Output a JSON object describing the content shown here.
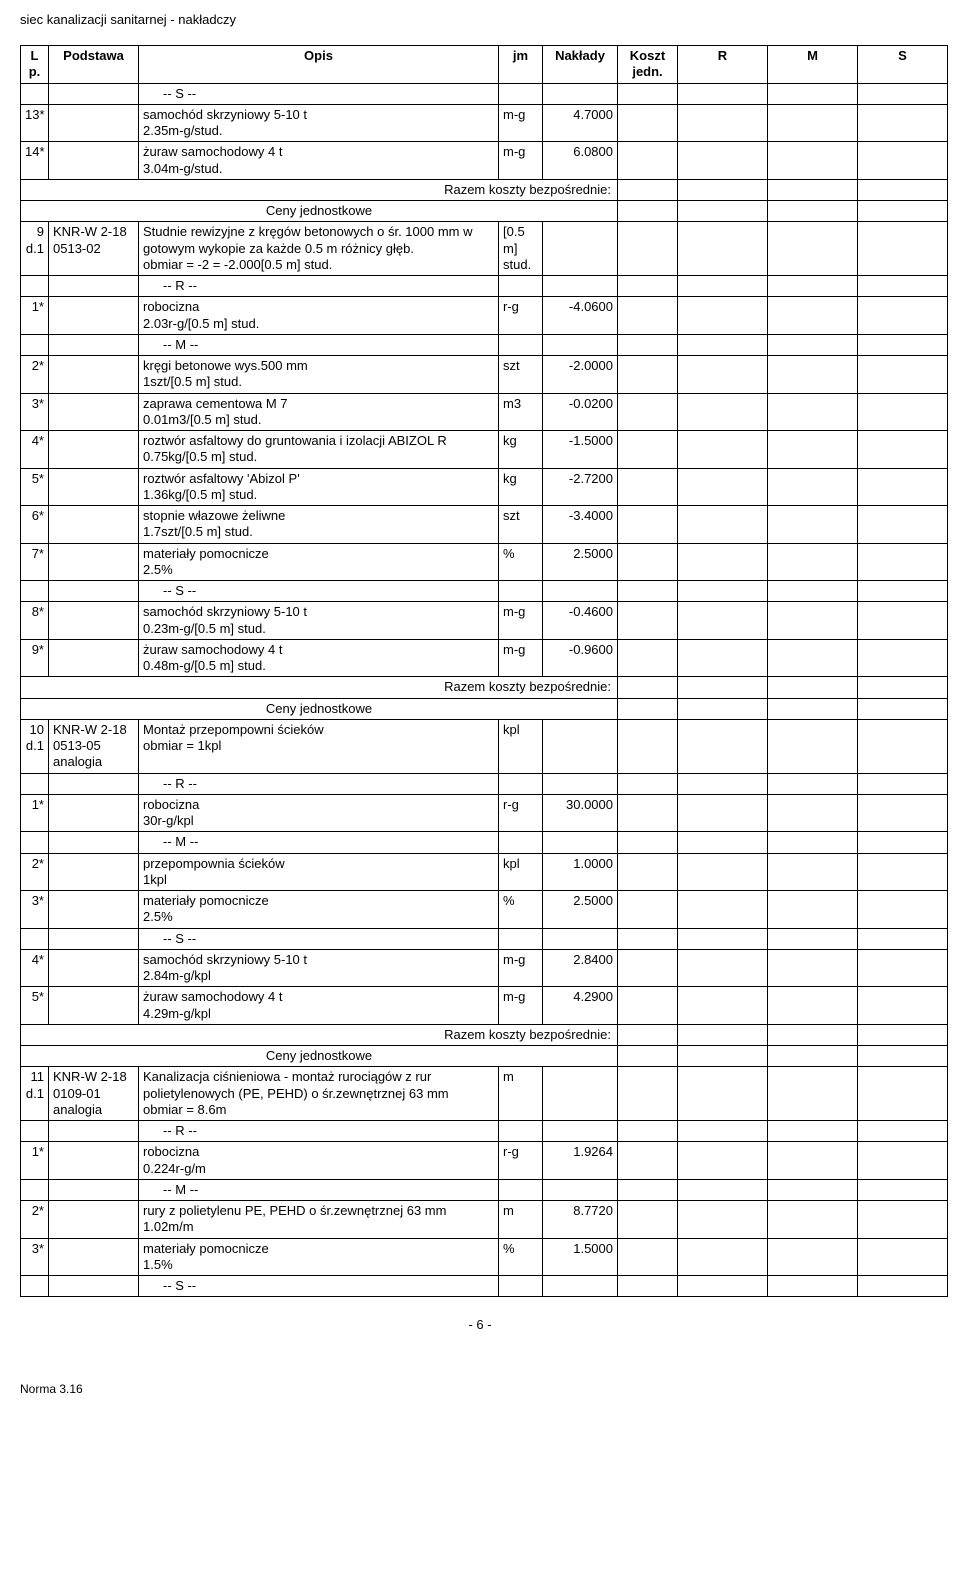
{
  "doc_title": "siec kanalizacji sanitarnej - nakładczy",
  "header": {
    "lp": "L p.",
    "podstawa": "Podstawa",
    "opis": "Opis",
    "jm": "jm",
    "naklady": "Nakłady",
    "koszt": "Koszt jedn.",
    "r": "R",
    "m": "M",
    "s": "S"
  },
  "labels": {
    "razem": "Razem koszty bezpośrednie:",
    "ceny": "Ceny jednostkowe",
    "sec_s": "-- S --",
    "sec_r": "-- R --",
    "sec_m": "-- M --"
  },
  "rows": [
    {
      "type": "section",
      "text_key": "sec_s"
    },
    {
      "type": "item",
      "lp": "13*",
      "opis": "samochód skrzyniowy 5-10 t\n2.35m-g/stud.",
      "jm": "m-g",
      "nakl": "4.7000"
    },
    {
      "type": "item",
      "lp": "14*",
      "opis": "żuraw samochodowy 4 t\n3.04m-g/stud.",
      "jm": "m-g",
      "nakl": "6.0800"
    },
    {
      "type": "razem"
    },
    {
      "type": "ceny"
    },
    {
      "type": "main",
      "lp": "9",
      "d": "d.1",
      "basis": "KNR-W 2-18\n0513-02",
      "opis": "Studnie rewizyjne z kręgów betonowych o śr. 1000 mm w gotowym wykopie za każde 0.5 m różnicy głęb.\nobmiar = -2 = -2.000[0.5 m] stud.",
      "jm": "[0.5 m] stud.",
      "nakl": ""
    },
    {
      "type": "section",
      "text_key": "sec_r"
    },
    {
      "type": "item",
      "lp": "1*",
      "opis": "robocizna\n2.03r-g/[0.5 m] stud.",
      "jm": "r-g",
      "nakl": "-4.0600"
    },
    {
      "type": "section",
      "text_key": "sec_m"
    },
    {
      "type": "item",
      "lp": "2*",
      "opis": "kręgi betonowe wys.500 mm\n1szt/[0.5 m] stud.",
      "jm": "szt",
      "nakl": "-2.0000"
    },
    {
      "type": "item",
      "lp": "3*",
      "opis": "zaprawa cementowa M 7\n0.01m3/[0.5 m] stud.",
      "jm": "m3",
      "nakl": "-0.0200"
    },
    {
      "type": "item",
      "lp": "4*",
      "opis": "roztwór asfaltowy do gruntowania i izolacji ABIZOL R\n0.75kg/[0.5 m] stud.",
      "jm": "kg",
      "nakl": "-1.5000"
    },
    {
      "type": "item",
      "lp": "5*",
      "opis": "roztwór asfaltowy 'Abizol P'\n1.36kg/[0.5 m] stud.",
      "jm": "kg",
      "nakl": "-2.7200"
    },
    {
      "type": "item",
      "lp": "6*",
      "opis": "stopnie włazowe żeliwne\n1.7szt/[0.5 m] stud.",
      "jm": "szt",
      "nakl": "-3.4000"
    },
    {
      "type": "item",
      "lp": "7*",
      "opis": "materiały pomocnicze\n2.5%",
      "jm": "%",
      "nakl": "2.5000"
    },
    {
      "type": "section",
      "text_key": "sec_s"
    },
    {
      "type": "item",
      "lp": "8*",
      "opis": "samochód skrzyniowy 5-10 t\n0.23m-g/[0.5 m] stud.",
      "jm": "m-g",
      "nakl": "-0.4600"
    },
    {
      "type": "item",
      "lp": "9*",
      "opis": "żuraw samochodowy 4 t\n0.48m-g/[0.5 m] stud.",
      "jm": "m-g",
      "nakl": "-0.9600"
    },
    {
      "type": "razem"
    },
    {
      "type": "ceny"
    },
    {
      "type": "main",
      "lp": "10",
      "d": "d.1",
      "basis": "KNR-W 2-18\n0513-05 analogia",
      "opis": "Montaż przepompowni ścieków\nobmiar = 1kpl",
      "jm": "kpl",
      "nakl": ""
    },
    {
      "type": "section",
      "text_key": "sec_r"
    },
    {
      "type": "item",
      "lp": "1*",
      "opis": "robocizna\n30r-g/kpl",
      "jm": "r-g",
      "nakl": "30.0000"
    },
    {
      "type": "section",
      "text_key": "sec_m"
    },
    {
      "type": "item",
      "lp": "2*",
      "opis": "przepompownia ścieków\n1kpl",
      "jm": "kpl",
      "nakl": "1.0000"
    },
    {
      "type": "item",
      "lp": "3*",
      "opis": "materiały pomocnicze\n2.5%",
      "jm": "%",
      "nakl": "2.5000"
    },
    {
      "type": "section",
      "text_key": "sec_s"
    },
    {
      "type": "item",
      "lp": "4*",
      "opis": "samochód skrzyniowy 5-10 t\n2.84m-g/kpl",
      "jm": "m-g",
      "nakl": "2.8400"
    },
    {
      "type": "item",
      "lp": "5*",
      "opis": "żuraw samochodowy 4 t\n4.29m-g/kpl",
      "jm": "m-g",
      "nakl": "4.2900"
    },
    {
      "type": "razem"
    },
    {
      "type": "ceny"
    },
    {
      "type": "main",
      "lp": "11",
      "d": "d.1",
      "basis": "KNR-W 2-18\n0109-01\nanalogia",
      "opis": "Kanalizacja ciśnieniowa - montaż rurociągów z rur polietylenowych (PE, PEHD) o śr.zewnętrznej 63 mm\nobmiar = 8.6m",
      "jm": "m",
      "nakl": ""
    },
    {
      "type": "section",
      "text_key": "sec_r"
    },
    {
      "type": "item",
      "lp": "1*",
      "opis": "robocizna\n0.224r-g/m",
      "jm": "r-g",
      "nakl": "1.9264"
    },
    {
      "type": "section",
      "text_key": "sec_m"
    },
    {
      "type": "item",
      "lp": "2*",
      "opis": "rury z polietylenu PE, PEHD o śr.zewnętrznej 63 mm\n1.02m/m",
      "jm": "m",
      "nakl": "8.7720"
    },
    {
      "type": "item",
      "lp": "3*",
      "opis": "materiały pomocnicze\n1.5%",
      "jm": "%",
      "nakl": "1.5000"
    },
    {
      "type": "section",
      "text_key": "sec_s"
    }
  ],
  "page_num": "- 6 -",
  "footer": "Norma 3.16"
}
